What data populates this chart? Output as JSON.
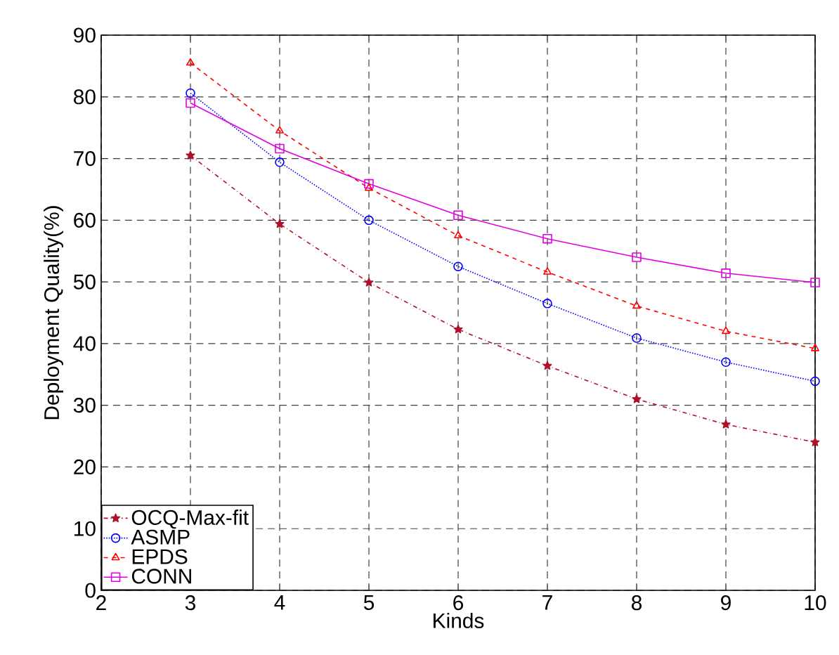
{
  "chart_data": {
    "type": "line",
    "xlabel": "Kinds",
    "ylabel": "Deployment Quality(%)",
    "x": [
      3,
      4,
      5,
      6,
      7,
      8,
      9,
      10
    ],
    "series": [
      {
        "name": "OCQ-Max-fit",
        "color": "#b0102a",
        "marker": "star",
        "line_style": "dashdot",
        "values": [
          70.5,
          59.4,
          49.9,
          42.3,
          36.4,
          31,
          26.9,
          24
        ]
      },
      {
        "name": "ASMP",
        "color": "#0000ff",
        "marker": "circle",
        "line_style": "dotted",
        "values": [
          80.6,
          69.4,
          60,
          52.5,
          46.5,
          40.9,
          37,
          33.9
        ]
      },
      {
        "name": "EPDS",
        "color": "#ff0000",
        "marker": "triangle",
        "line_style": "dashed",
        "values": [
          85.5,
          74.5,
          65.2,
          57.5,
          51.6,
          46.1,
          42,
          39.2
        ]
      },
      {
        "name": "CONN",
        "color": "#e000e0",
        "marker": "square",
        "line_style": "solid",
        "values": [
          79,
          71.6,
          65.9,
          60.8,
          57,
          54,
          51.4,
          49.9
        ]
      }
    ],
    "xlim": [
      2,
      10
    ],
    "ylim": [
      0,
      90
    ],
    "xticks": [
      2,
      3,
      4,
      5,
      6,
      7,
      8,
      9,
      10
    ],
    "yticks": [
      0,
      10,
      20,
      30,
      40,
      50,
      60,
      70,
      80,
      90
    ],
    "grid": true,
    "legend": "bottom left"
  }
}
